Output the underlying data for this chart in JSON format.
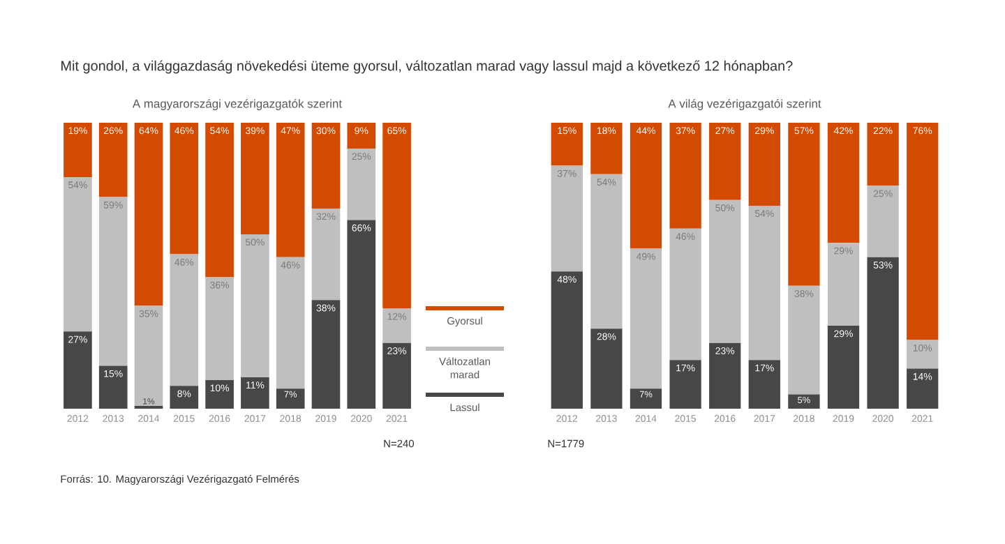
{
  "chart_data": [
    {
      "type": "bar",
      "stacked": true,
      "title": "Mit gondol, a világgazdaság növekedési üteme gyorsul, változatlan marad vagy lassul majd a következő 12 hónapban?",
      "subtitle": "A magyarországi vezérigazgatók szerint",
      "categories": [
        "2012",
        "2013",
        "2014",
        "2015",
        "2016",
        "2017",
        "2018",
        "2019",
        "2020",
        "2021"
      ],
      "ylim": [
        0,
        100
      ],
      "tick_labels": "x",
      "legend": "right",
      "series": [
        {
          "name": "Lassul",
          "color": "#474747",
          "values": [
            27,
            15,
            1,
            8,
            10,
            11,
            7,
            38,
            66,
            23
          ],
          "value_labels": [
            "27%",
            "15%",
            "1%",
            "8%",
            "10%",
            "11%",
            "7%",
            "38%",
            "66%",
            "23%"
          ]
        },
        {
          "name": "Változatlan marad",
          "color": "#bfbfbf",
          "values": [
            54,
            59,
            35,
            46,
            36,
            50,
            46,
            32,
            25,
            12
          ],
          "value_labels": [
            "54%",
            "59%",
            "35%",
            "46%",
            "36%",
            "50%",
            "46%",
            "32%",
            "25%",
            "12%"
          ]
        },
        {
          "name": "Gyorsul",
          "color": "#d24b00",
          "values": [
            19,
            26,
            64,
            46,
            54,
            39,
            47,
            30,
            9,
            65
          ],
          "value_labels": [
            "19%",
            "26%",
            "64%",
            "46%",
            "54%",
            "39%",
            "47%",
            "30%",
            "9%",
            "65%"
          ]
        }
      ],
      "annotations": [
        "N=240",
        "Forrás: 10. Magyarországi Vezérigazgató Felmérés"
      ]
    },
    {
      "type": "bar",
      "stacked": true,
      "subtitle": "A világ vezérigazgatói szerint",
      "categories": [
        "2012",
        "2013",
        "2014",
        "2015",
        "2016",
        "2017",
        "2018",
        "2019",
        "2020",
        "2021"
      ],
      "ylim": [
        0,
        100
      ],
      "tick_labels": "x",
      "series": [
        {
          "color": "#474747",
          "values": [
            48,
            28,
            7,
            17,
            23,
            17,
            5,
            29,
            53,
            14
          ],
          "value_labels": [
            "48%",
            "28%",
            "7%",
            "17%",
            "23%",
            "17%",
            "5%",
            "29%",
            "53%",
            "14%"
          ]
        },
        {
          "color": "#bfbfbf",
          "values": [
            37,
            54,
            49,
            46,
            50,
            54,
            38,
            29,
            25,
            10
          ],
          "value_labels": [
            "37%",
            "54%",
            "49%",
            "46%",
            "50%",
            "54%",
            "38%",
            "29%",
            "25%",
            "10%"
          ]
        },
        {
          "color": "#d24b00",
          "values": [
            15,
            18,
            44,
            37,
            27,
            29,
            57,
            42,
            22,
            76
          ],
          "value_labels": [
            "15%",
            "18%",
            "44%",
            "37%",
            "27%",
            "29%",
            "57%",
            "42%",
            "22%",
            "76%"
          ]
        }
      ],
      "annotations": [
        "N=1779"
      ]
    }
  ]
}
